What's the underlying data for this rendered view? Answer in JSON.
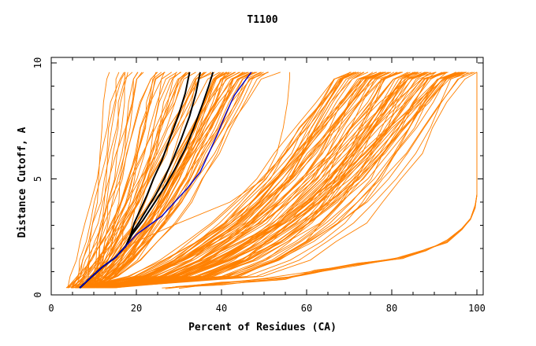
{
  "chart_data": {
    "type": "line",
    "title": "T1100",
    "xlabel": "Percent of Residues (CA)",
    "ylabel": "Distance Cutoff, A",
    "xlim": [
      0,
      100
    ],
    "ylim": [
      0,
      10
    ],
    "xticks": [
      "0",
      "20",
      "40",
      "60",
      "80",
      "100"
    ],
    "yticks": [
      "0",
      "5",
      "10"
    ],
    "colors": {
      "bundle": "#ff8000",
      "highlight_black": "#000000",
      "highlight_blue": "#0000cc"
    },
    "series": [
      {
        "role": "highlight_black",
        "points": [
          [
            6.7,
            0.3
          ],
          [
            9,
            0.7
          ],
          [
            12,
            1.2
          ],
          [
            15,
            1.6
          ],
          [
            17.5,
            2.1
          ],
          [
            18.7,
            2.6
          ],
          [
            19.5,
            3.1
          ],
          [
            21,
            3.7
          ],
          [
            22.5,
            4.3
          ],
          [
            24,
            5.0
          ],
          [
            26,
            5.8
          ],
          [
            28,
            6.8
          ],
          [
            30,
            7.8
          ],
          [
            31.5,
            8.7
          ],
          [
            32.5,
            9.6
          ]
        ]
      },
      {
        "role": "highlight_black",
        "points": [
          [
            6.7,
            0.3
          ],
          [
            9,
            0.7
          ],
          [
            12,
            1.2
          ],
          [
            15,
            1.6
          ],
          [
            17.5,
            2.1
          ],
          [
            18.7,
            2.6
          ],
          [
            20.5,
            3.1
          ],
          [
            22.5,
            3.7
          ],
          [
            24.5,
            4.3
          ],
          [
            26.5,
            5.0
          ],
          [
            28.5,
            5.8
          ],
          [
            30.5,
            6.7
          ],
          [
            32.5,
            7.7
          ],
          [
            34,
            8.7
          ],
          [
            35,
            9.6
          ]
        ]
      },
      {
        "role": "highlight_black",
        "points": [
          [
            6.7,
            0.3
          ],
          [
            9,
            0.7
          ],
          [
            12,
            1.2
          ],
          [
            15,
            1.6
          ],
          [
            17.5,
            2.1
          ],
          [
            19,
            2.6
          ],
          [
            21.5,
            3.2
          ],
          [
            24,
            3.9
          ],
          [
            26.5,
            4.6
          ],
          [
            29,
            5.4
          ],
          [
            31.5,
            6.3
          ],
          [
            33.5,
            7.2
          ],
          [
            35.5,
            8.2
          ],
          [
            37,
            9.0
          ],
          [
            38,
            9.6
          ]
        ]
      },
      {
        "role": "highlight_blue",
        "points": [
          [
            6.7,
            0.3
          ],
          [
            9,
            0.7
          ],
          [
            12,
            1.2
          ],
          [
            15,
            1.6
          ],
          [
            17.5,
            2.1
          ],
          [
            20,
            2.6
          ],
          [
            23,
            3.0
          ],
          [
            26,
            3.4
          ],
          [
            29,
            4.0
          ],
          [
            32,
            4.6
          ],
          [
            35,
            5.3
          ],
          [
            37,
            6.1
          ],
          [
            39,
            6.9
          ],
          [
            41,
            7.8
          ],
          [
            43,
            8.6
          ],
          [
            45,
            9.1
          ],
          [
            47,
            9.6
          ]
        ]
      }
    ]
  }
}
